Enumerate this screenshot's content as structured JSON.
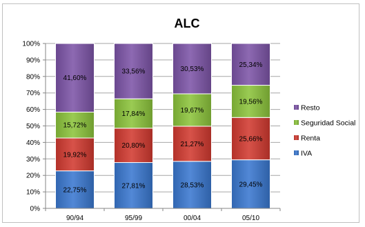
{
  "chart_data": {
    "type": "bar",
    "stacked": true,
    "title": "ALC",
    "categories": [
      "90/94",
      "95/99",
      "00/04",
      "05/10"
    ],
    "ylim": [
      0,
      100
    ],
    "yticks": [
      "0%",
      "10%",
      "20%",
      "30%",
      "40%",
      "50%",
      "60%",
      "70%",
      "80%",
      "90%",
      "100%"
    ],
    "grid": true,
    "legend_position": "right",
    "series": [
      {
        "name": "IVA",
        "color": "#3a78d0",
        "values": [
          22.75,
          27.81,
          28.53,
          29.45
        ],
        "labels": [
          "22,75%",
          "27,81%",
          "28,53%",
          "29,45%"
        ]
      },
      {
        "name": "Renta",
        "color": "#d23a30",
        "values": [
          19.92,
          20.8,
          21.27,
          25.66
        ],
        "labels": [
          "19,92%",
          "20,80%",
          "21,27%",
          "25,66%"
        ]
      },
      {
        "name": "Seguridad Social",
        "color": "#8cc43c",
        "values": [
          15.72,
          17.84,
          19.67,
          19.56
        ],
        "labels": [
          "15,72%",
          "17,84%",
          "19,67%",
          "19,56%"
        ]
      },
      {
        "name": "Resto",
        "color": "#7d55a8",
        "values": [
          41.6,
          33.56,
          30.53,
          25.34
        ],
        "labels": [
          "41,60%",
          "33,56%",
          "30,53%",
          "25,34%"
        ]
      }
    ]
  }
}
